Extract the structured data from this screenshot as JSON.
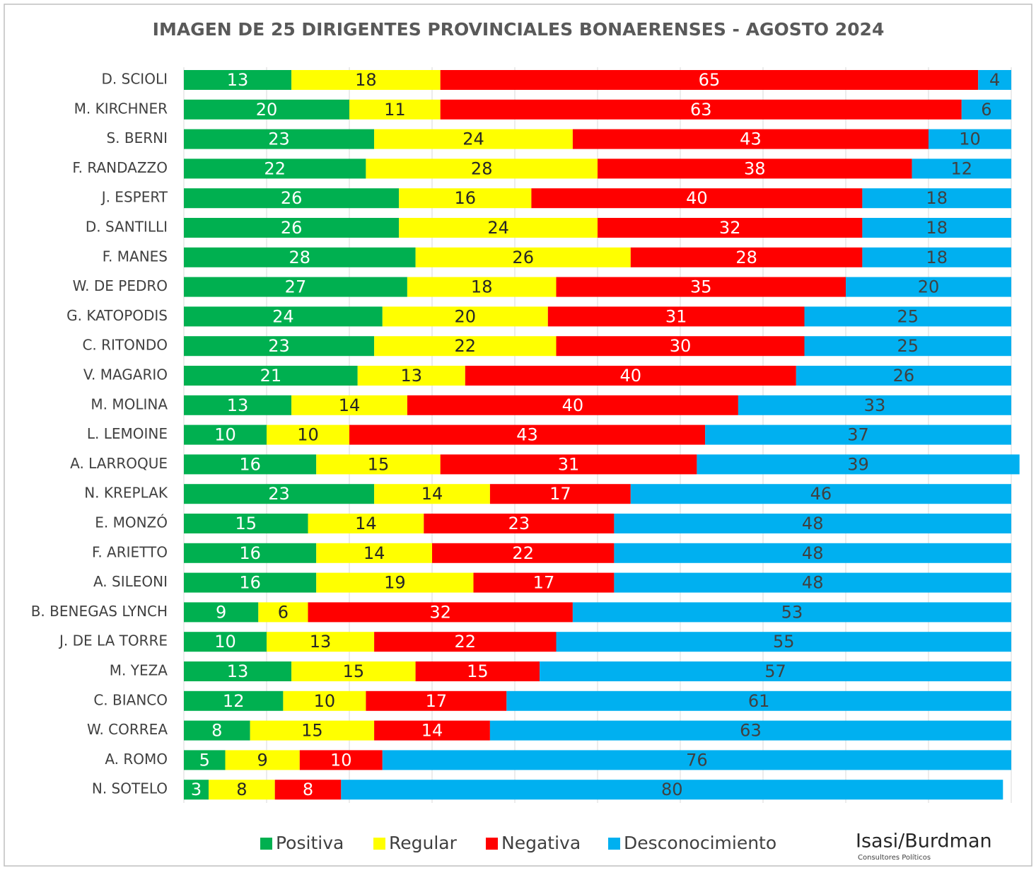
{
  "chart_data": {
    "type": "stacked_barh",
    "title": "IMAGEN DE 25 DIRIGENTES PROVINCIALES BONAERENSES - AGOSTO 2024",
    "categories": [
      "D. SCIOLI",
      "M. KIRCHNER",
      "S. BERNI",
      "F. RANDAZZO",
      "J. ESPERT",
      "D. SANTILLI",
      "F. MANES",
      "W. DE PEDRO",
      "G. KATOPODIS",
      "C. RITONDO",
      "V. MAGARIO",
      "M. MOLINA",
      "L. LEMOINE",
      "A. LARROQUE",
      "N. KREPLAK",
      "E. MONZÓ",
      "F. ARIETTO",
      "A. SILEONI",
      "B. BENEGAS LYNCH",
      "J. DE LA TORRE",
      "M. YEZA",
      "C. BIANCO",
      "W. CORREA",
      "A. ROMO",
      "N. SOTELO"
    ],
    "series": [
      {
        "name": "Positiva",
        "color": "#00b050",
        "label_color": "#ffffff",
        "values": [
          13,
          20,
          23,
          22,
          26,
          26,
          28,
          27,
          24,
          23,
          21,
          13,
          10,
          16,
          23,
          15,
          16,
          16,
          9,
          10,
          13,
          12,
          8,
          5,
          3
        ]
      },
      {
        "name": "Regular",
        "color": "#ffff00",
        "label_color": "#262626",
        "values": [
          18,
          11,
          24,
          28,
          16,
          24,
          26,
          18,
          20,
          22,
          13,
          14,
          10,
          15,
          14,
          14,
          14,
          19,
          6,
          13,
          15,
          10,
          15,
          9,
          8
        ]
      },
      {
        "name": "Negativa",
        "color": "#ff0000",
        "label_color": "#ffffff",
        "values": [
          65,
          63,
          43,
          38,
          40,
          32,
          28,
          35,
          31,
          30,
          40,
          40,
          43,
          31,
          17,
          23,
          22,
          17,
          32,
          22,
          15,
          17,
          14,
          10,
          8
        ]
      },
      {
        "name": "Desconocimiento",
        "color": "#00b0f0",
        "label_color": "#404040",
        "values": [
          4,
          6,
          10,
          12,
          18,
          18,
          18,
          20,
          25,
          25,
          26,
          33,
          37,
          39,
          46,
          48,
          48,
          48,
          53,
          55,
          57,
          61,
          63,
          76,
          80
        ]
      }
    ],
    "xlim": [
      0,
      100
    ],
    "xticks": [
      0,
      10,
      20,
      30,
      40,
      50,
      60,
      70,
      80,
      90,
      100
    ],
    "grid": true,
    "legend": "bottom",
    "logo": {
      "name": "Isasi/Burdman",
      "subtitle": "Consultores Políticos"
    }
  }
}
